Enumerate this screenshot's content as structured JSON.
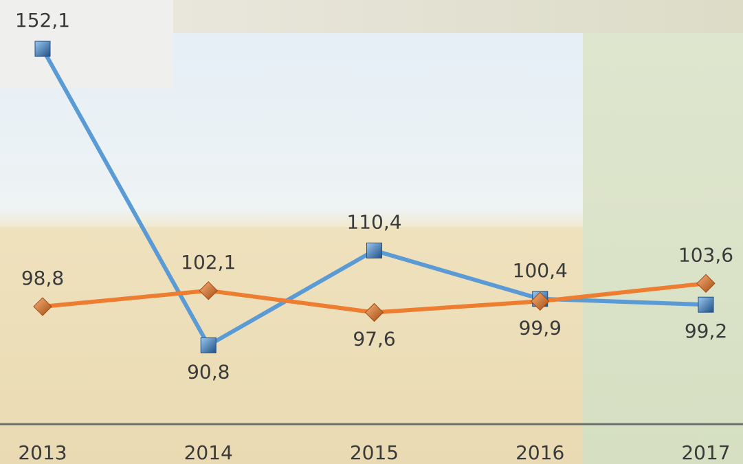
{
  "chart_data": {
    "type": "line",
    "categories": [
      "2013",
      "2014",
      "2015",
      "2016",
      "2017"
    ],
    "series": [
      {
        "color": "#5b9bd5",
        "values": [
          152.1,
          90.8,
          110.4,
          100.4,
          99.2
        ],
        "value_labels": [
          "152,1",
          "90,8",
          "110,4",
          "100,4",
          "99,2"
        ]
      },
      {
        "color": "#ed7d31",
        "values": [
          98.8,
          102.1,
          97.6,
          99.9,
          103.6
        ],
        "value_labels": [
          "98,8",
          "102,1",
          "97,6",
          "99,9",
          "103,6"
        ]
      }
    ],
    "ylim": [
      74.5,
      162.2
    ]
  }
}
